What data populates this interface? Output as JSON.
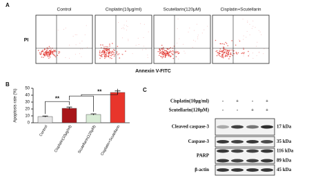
{
  "panel_a": {
    "label": "A",
    "titles": [
      "Control",
      "Cisplatin(10μg/ml)",
      "Scutellarin(120μM)",
      "Cisplatin+Scutellarin"
    ],
    "y_label": "PI",
    "x_label": "Annexin V-FITC"
  },
  "chart_data": {
    "type": "bar",
    "panel_label": "B",
    "y_label": "Apoptosis rate (%)",
    "categories": [
      "Control",
      "Cisplatin(10μg/ml)",
      "Scutellarin(120μM)",
      "Cisplatin+Scutellarin"
    ],
    "values": [
      9,
      21,
      12,
      44
    ],
    "errors": [
      0.8,
      1.8,
      1,
      2.2
    ],
    "colors": [
      "#e6e6e6",
      "#a8161a",
      "#d9ecd6",
      "#e8352b"
    ],
    "ylim": [
      0,
      50
    ],
    "yticks": [
      0,
      10,
      20,
      30,
      40,
      50
    ],
    "annotations": [
      "**",
      "**"
    ]
  },
  "panel_c": {
    "label": "C",
    "treatments": [
      {
        "name": "Cisplatin(10μg/ml)",
        "signs": [
          "-",
          "+",
          "-",
          "+"
        ]
      },
      {
        "name": "Scutellarin(120μM)",
        "signs": [
          "-",
          "-",
          "+",
          "+"
        ]
      }
    ],
    "blots": [
      {
        "name": "Cleaved caspase-3",
        "sizes": [
          "17 kDa"
        ]
      },
      {
        "name": "Caspase-3",
        "sizes": [
          "35 kDa"
        ]
      },
      {
        "name": "PARP",
        "sizes": [
          "116 kDa",
          "89 kDa"
        ]
      },
      {
        "name": "β-actin",
        "sizes": [
          "45 kDa"
        ]
      }
    ]
  }
}
